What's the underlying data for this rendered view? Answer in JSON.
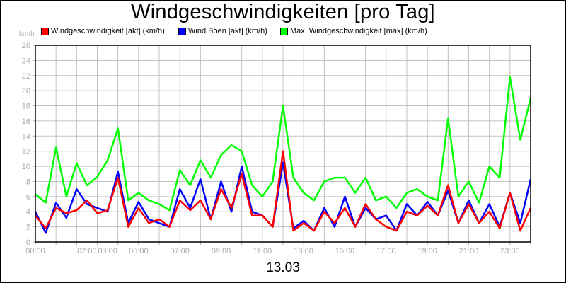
{
  "title": "Windgeschwindigkeiten [pro Tag]",
  "unit_label": "km/h",
  "date_label": "13.03",
  "legend": [
    {
      "label": "Windgeschwindigkeit [akt] (km/h)",
      "color": "#ff0000"
    },
    {
      "label": "Wind Böen [akt] (km/h)",
      "color": "#0000ff"
    },
    {
      "label": "Max. Windgeschwindigkeit [max] (km/h)",
      "color": "#00ff00"
    }
  ],
  "chart_data": {
    "type": "line",
    "title": "Windgeschwindigkeiten [pro Tag]",
    "xlabel": "13.03",
    "ylabel": "km/h",
    "ylim": [
      0,
      26
    ],
    "yticks": [
      0,
      2,
      4,
      6,
      8,
      10,
      12,
      14,
      16,
      18,
      20,
      22,
      24,
      26
    ],
    "xtick_labels": [
      {
        "label": "00:00",
        "pos": 0
      },
      {
        "label": "02:00",
        "pos": 2.5
      },
      {
        "label": "03:00",
        "pos": 3.5
      },
      {
        "label": "05:00",
        "pos": 5
      },
      {
        "label": "07:00",
        "pos": 7
      },
      {
        "label": "09:00",
        "pos": 9
      },
      {
        "label": "11:00",
        "pos": 11
      },
      {
        "label": "13:00",
        "pos": 13
      },
      {
        "label": "15:00",
        "pos": 15
      },
      {
        "label": "17:00",
        "pos": 17
      },
      {
        "label": "19:00",
        "pos": 19
      },
      {
        "label": "21:00",
        "pos": 21
      },
      {
        "label": "23:00",
        "pos": 23
      }
    ],
    "grid": true,
    "legend_position": "top",
    "x_hours": [
      0,
      0.5,
      1,
      1.5,
      2,
      2.5,
      3,
      3.5,
      4,
      4.5,
      5,
      5.5,
      6,
      6.5,
      7,
      7.5,
      8,
      8.5,
      9,
      9.5,
      10,
      10.5,
      11,
      11.5,
      12,
      12.5,
      13,
      13.5,
      14,
      14.5,
      15,
      15.5,
      16,
      16.5,
      17,
      17.5,
      18,
      18.5,
      19,
      19.5,
      20,
      20.5,
      21,
      21.5,
      22,
      22.5,
      23,
      23.5,
      24
    ],
    "series": [
      {
        "name": "Windgeschwindigkeit [akt] (km/h)",
        "color": "#ff0000",
        "values": [
          3.5,
          1.8,
          4.5,
          3.8,
          4.2,
          5.5,
          3.8,
          4.2,
          8.5,
          2.0,
          4.5,
          2.5,
          3.0,
          2.0,
          5.5,
          4.2,
          5.5,
          3.0,
          7.0,
          4.5,
          9.0,
          3.5,
          3.5,
          2.0,
          12.0,
          1.5,
          2.5,
          1.5,
          4.0,
          2.5,
          4.5,
          2.0,
          5.0,
          3.0,
          2.0,
          1.5,
          4.0,
          3.5,
          4.8,
          3.5,
          7.5,
          2.5,
          5.0,
          2.5,
          4.0,
          1.8,
          6.5,
          1.5,
          4.5
        ]
      },
      {
        "name": "Wind Böen [akt] (km/h)",
        "color": "#0000ff",
        "values": [
          4.0,
          1.2,
          5.2,
          3.2,
          7.0,
          5.0,
          4.5,
          4.0,
          9.3,
          2.5,
          5.3,
          3.0,
          2.5,
          2.0,
          7.0,
          4.5,
          8.3,
          3.0,
          8.0,
          4.0,
          10.0,
          4.0,
          3.5,
          2.0,
          10.5,
          1.8,
          2.8,
          1.5,
          4.5,
          2.0,
          6.0,
          2.0,
          4.5,
          3.0,
          3.5,
          1.5,
          5.0,
          3.5,
          5.3,
          3.5,
          6.8,
          2.5,
          5.5,
          2.5,
          5.0,
          2.0,
          6.5,
          2.5,
          8.3
        ]
      },
      {
        "name": "Max. Windgeschwindigkeit [max] (km/h)",
        "color": "#00ff00",
        "values": [
          6.3,
          5.2,
          12.5,
          6.0,
          10.4,
          7.5,
          8.6,
          10.8,
          15.0,
          5.5,
          6.5,
          5.5,
          5.0,
          4.2,
          9.5,
          7.5,
          10.8,
          8.5,
          11.5,
          12.8,
          12.0,
          7.5,
          6.0,
          8.0,
          18.0,
          8.5,
          6.5,
          5.5,
          8.0,
          8.5,
          8.5,
          6.5,
          8.5,
          5.5,
          6.0,
          4.5,
          6.5,
          7.0,
          6.0,
          5.5,
          16.3,
          6.0,
          8.0,
          5.2,
          10.0,
          8.5,
          21.8,
          13.5,
          19.0
        ]
      }
    ]
  }
}
